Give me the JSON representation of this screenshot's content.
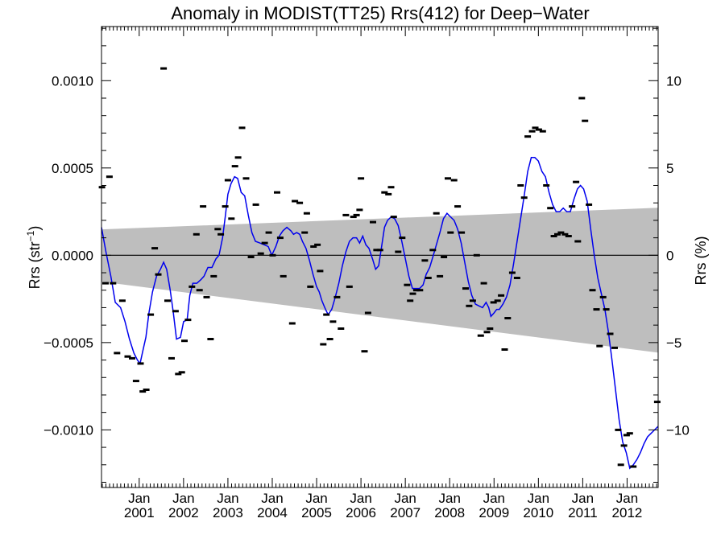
{
  "chart_data": {
    "type": "scatter",
    "title": "Anomaly in MODIST(TT25) Rrs(412) for Deep−Water",
    "ylabel_left_main": "Rrs (str",
    "ylabel_left_sup": "−1",
    "ylabel_left_close": ")",
    "ylabel_right": "Rrs (%)",
    "xlim": [
      2000.15,
      2012.7
    ],
    "ylim": [
      -0.00133,
      0.00131
    ],
    "y_ticks": [
      {
        "value": 0.001,
        "label": "0.0010"
      },
      {
        "value": 0.0005,
        "label": "0.0005"
      },
      {
        "value": 0.0,
        "label": "0.0000"
      },
      {
        "value": -0.0005,
        "label": "−0.0005"
      },
      {
        "value": -0.001,
        "label": "−0.0010"
      }
    ],
    "y_right_ticks": [
      {
        "value": 0.001,
        "label": "10"
      },
      {
        "value": 0.0005,
        "label": "5"
      },
      {
        "value": 0.0,
        "label": "0"
      },
      {
        "value": -0.0005,
        "label": "−5"
      },
      {
        "value": -0.001,
        "label": "−10"
      }
    ],
    "x_ticks": [
      {
        "value": 2001.0,
        "line1": "Jan",
        "line2": "2001"
      },
      {
        "value": 2002.0,
        "line1": "Jan",
        "line2": "2002"
      },
      {
        "value": 2003.0,
        "line1": "Jan",
        "line2": "2003"
      },
      {
        "value": 2004.0,
        "line1": "Jan",
        "line2": "2004"
      },
      {
        "value": 2005.0,
        "line1": "Jan",
        "line2": "2005"
      },
      {
        "value": 2006.0,
        "line1": "Jan",
        "line2": "2006"
      },
      {
        "value": 2007.0,
        "line1": "Jan",
        "line2": "2007"
      },
      {
        "value": 2008.0,
        "line1": "Jan",
        "line2": "2008"
      },
      {
        "value": 2009.0,
        "line1": "Jan",
        "line2": "2009"
      },
      {
        "value": 2010.0,
        "line1": "Jan",
        "line2": "2010"
      },
      {
        "value": 2011.0,
        "line1": "Jan",
        "line2": "2011"
      },
      {
        "value": 2012.0,
        "line1": "Jan",
        "line2": "2012"
      }
    ],
    "band": {
      "upper": [
        [
          2000.15,
          0.000148
        ],
        [
          2012.7,
          0.000272
        ]
      ],
      "lower": [
        [
          2000.15,
          -0.000152
        ],
        [
          2012.7,
          -0.000558
        ]
      ]
    },
    "zero_line": 0.0,
    "points": [
      [
        2000.16,
        0.00039
      ],
      [
        2000.24,
        -0.00016
      ],
      [
        2000.33,
        0.00045
      ],
      [
        2000.41,
        -0.00016
      ],
      [
        2000.5,
        -0.00056
      ],
      [
        2000.62,
        -0.00026
      ],
      [
        2000.74,
        -0.00058
      ],
      [
        2000.84,
        -0.00059
      ],
      [
        2000.93,
        -0.00072
      ],
      [
        2001.03,
        -0.00062
      ],
      [
        2001.08,
        -0.00078
      ],
      [
        2001.16,
        -0.00077
      ],
      [
        2001.26,
        -0.00034
      ],
      [
        2001.35,
        4e-05
      ],
      [
        2001.43,
        -0.00011
      ],
      [
        2001.55,
        0.00107
      ],
      [
        2001.64,
        -0.00026
      ],
      [
        2001.73,
        -0.00059
      ],
      [
        2001.82,
        -0.00032
      ],
      [
        2001.88,
        -0.00068
      ],
      [
        2001.96,
        -0.00067
      ],
      [
        2002.02,
        -0.00049
      ],
      [
        2002.1,
        -0.00037
      ],
      [
        2002.19,
        -0.00018
      ],
      [
        2002.29,
        0.00012
      ],
      [
        2002.36,
        -0.0002
      ],
      [
        2002.44,
        0.00028
      ],
      [
        2002.52,
        -0.00024
      ],
      [
        2002.61,
        -0.00048
      ],
      [
        2002.68,
        -0.00012
      ],
      [
        2002.77,
        0.00015
      ],
      [
        2002.84,
        0.00012
      ],
      [
        2002.94,
        0.00028
      ],
      [
        2003.0,
        0.00043
      ],
      [
        2003.08,
        0.00021
      ],
      [
        2003.16,
        0.00051
      ],
      [
        2003.23,
        0.00056
      ],
      [
        2003.32,
        0.00073
      ],
      [
        2003.41,
        0.00044
      ],
      [
        2003.52,
        -1e-05
      ],
      [
        2003.63,
        0.00029
      ],
      [
        2003.74,
        1e-05
      ],
      [
        2003.83,
        7e-05
      ],
      [
        2003.92,
        0.00013
      ],
      [
        2004.01,
        0.0
      ],
      [
        2004.11,
        0.00036
      ],
      [
        2004.18,
        0.0001
      ],
      [
        2004.25,
        -0.00012
      ],
      [
        2004.45,
        -0.00039
      ],
      [
        2004.51,
        0.00031
      ],
      [
        2004.62,
        0.0003
      ],
      [
        2004.73,
        0.00013
      ],
      [
        2004.78,
        0.00024
      ],
      [
        2004.86,
        -0.00018
      ],
      [
        2004.93,
        5e-05
      ],
      [
        2005.02,
        6e-05
      ],
      [
        2005.08,
        -9e-05
      ],
      [
        2005.15,
        -0.00051
      ],
      [
        2005.22,
        -0.00034
      ],
      [
        2005.3,
        -0.00048
      ],
      [
        2005.37,
        -0.00038
      ],
      [
        2005.46,
        -0.00024
      ],
      [
        2005.55,
        -0.00042
      ],
      [
        2005.66,
        0.00023
      ],
      [
        2005.74,
        -0.00018
      ],
      [
        2005.83,
        0.00022
      ],
      [
        2005.9,
        0.00023
      ],
      [
        2005.97,
        0.00026
      ],
      [
        2006.0,
        0.00044
      ],
      [
        2006.08,
        -0.00055
      ],
      [
        2006.16,
        -0.00033
      ],
      [
        2006.27,
        0.00019
      ],
      [
        2006.35,
        3e-05
      ],
      [
        2006.43,
        3e-05
      ],
      [
        2006.53,
        0.00036
      ],
      [
        2006.62,
        0.00035
      ],
      [
        2006.68,
        0.00039
      ],
      [
        2006.74,
        0.00022
      ],
      [
        2006.84,
        2e-05
      ],
      [
        2006.93,
        0.0001
      ],
      [
        2007.04,
        -0.00017
      ],
      [
        2007.11,
        -0.00026
      ],
      [
        2007.17,
        -0.00022
      ],
      [
        2007.25,
        -0.0002
      ],
      [
        2007.33,
        -0.0002
      ],
      [
        2007.44,
        -3e-05
      ],
      [
        2007.52,
        -0.00013
      ],
      [
        2007.62,
        3e-05
      ],
      [
        2007.7,
        0.00024
      ],
      [
        2007.78,
        -0.00012
      ],
      [
        2007.87,
        -1e-05
      ],
      [
        2007.96,
        0.00044
      ],
      [
        2008.02,
        0.00013
      ],
      [
        2008.1,
        0.00043
      ],
      [
        2008.18,
        0.00028
      ],
      [
        2008.27,
        0.00013
      ],
      [
        2008.36,
        -0.00019
      ],
      [
        2008.44,
        -0.00029
      ],
      [
        2008.52,
        -0.00026
      ],
      [
        2008.61,
        0.0
      ],
      [
        2008.7,
        -0.00046
      ],
      [
        2008.77,
        -0.00016
      ],
      [
        2008.84,
        -0.00044
      ],
      [
        2008.91,
        -0.00042
      ],
      [
        2008.99,
        -0.00027
      ],
      [
        2009.08,
        -0.00026
      ],
      [
        2009.16,
        -0.00023
      ],
      [
        2009.24,
        -0.00054
      ],
      [
        2009.31,
        -0.00036
      ],
      [
        2009.41,
        -0.0001
      ],
      [
        2009.52,
        -0.00013
      ],
      [
        2009.6,
        0.0004
      ],
      [
        2009.68,
        0.00033
      ],
      [
        2009.76,
        0.00068
      ],
      [
        2009.86,
        0.00071
      ],
      [
        2009.93,
        0.00073
      ],
      [
        2010.01,
        0.00072
      ],
      [
        2010.1,
        0.00071
      ],
      [
        2010.18,
        0.0004
      ],
      [
        2010.27,
        0.00027
      ],
      [
        2010.35,
        0.00011
      ],
      [
        2010.43,
        0.00012
      ],
      [
        2010.51,
        0.00013
      ],
      [
        2010.6,
        0.00012
      ],
      [
        2010.68,
        0.00011
      ],
      [
        2010.76,
        0.00028
      ],
      [
        2010.85,
        0.00042
      ],
      [
        2010.89,
        8e-05
      ],
      [
        2010.98,
        0.0009
      ],
      [
        2011.05,
        0.00077
      ],
      [
        2011.14,
        0.00029
      ],
      [
        2011.22,
        -0.0002
      ],
      [
        2011.31,
        -0.00031
      ],
      [
        2011.38,
        -0.00052
      ],
      [
        2011.46,
        -0.00024
      ],
      [
        2011.53,
        -0.00031
      ],
      [
        2011.62,
        -0.00045
      ],
      [
        2011.72,
        -0.00053
      ],
      [
        2011.8,
        -0.001
      ],
      [
        2011.86,
        -0.0012
      ],
      [
        2011.93,
        -0.00109
      ],
      [
        2011.99,
        -0.00103
      ],
      [
        2012.06,
        -0.00102
      ],
      [
        2012.14,
        -0.00121
      ],
      [
        2012.68,
        -0.00084
      ]
    ],
    "smooth_line": [
      [
        2000.15,
        0.00016
      ],
      [
        2000.25,
        2e-05
      ],
      [
        2000.36,
        -0.00012
      ],
      [
        2000.46,
        -0.00027
      ],
      [
        2000.58,
        -0.0003
      ],
      [
        2000.68,
        -0.00038
      ],
      [
        2000.78,
        -0.00048
      ],
      [
        2000.88,
        -0.00056
      ],
      [
        2000.96,
        -0.0006
      ],
      [
        2001.02,
        -0.00062
      ],
      [
        2001.08,
        -0.00055
      ],
      [
        2001.15,
        -0.00047
      ],
      [
        2001.22,
        -0.00033
      ],
      [
        2001.3,
        -0.00021
      ],
      [
        2001.39,
        -0.00012
      ],
      [
        2001.48,
        -8e-05
      ],
      [
        2001.55,
        -4e-05
      ],
      [
        2001.62,
        -8e-05
      ],
      [
        2001.7,
        -0.0002
      ],
      [
        2001.77,
        -0.00033
      ],
      [
        2001.84,
        -0.00048
      ],
      [
        2001.93,
        -0.00047
      ],
      [
        2002.0,
        -0.00038
      ],
      [
        2002.08,
        -0.00037
      ],
      [
        2002.14,
        -0.00023
      ],
      [
        2002.21,
        -0.00016
      ],
      [
        2002.3,
        -0.00016
      ],
      [
        2002.39,
        -0.00014
      ],
      [
        2002.46,
        -0.00012
      ],
      [
        2002.55,
        -7e-05
      ],
      [
        2002.64,
        -7e-05
      ],
      [
        2002.73,
        -2e-05
      ],
      [
        2002.8,
        0.0
      ],
      [
        2002.88,
        0.0001
      ],
      [
        2002.94,
        0.00022
      ],
      [
        2003.0,
        0.00035
      ],
      [
        2003.07,
        0.00041
      ],
      [
        2003.15,
        0.00045
      ],
      [
        2003.22,
        0.00044
      ],
      [
        2003.3,
        0.00036
      ],
      [
        2003.38,
        0.00034
      ],
      [
        2003.46,
        0.00023
      ],
      [
        2003.54,
        0.00013
      ],
      [
        2003.62,
        8e-05
      ],
      [
        2003.72,
        7e-05
      ],
      [
        2003.82,
        6e-05
      ],
      [
        2003.91,
        5e-05
      ],
      [
        2003.99,
        0.0
      ],
      [
        2004.08,
        5e-05
      ],
      [
        2004.16,
        0.00011
      ],
      [
        2004.24,
        0.00014
      ],
      [
        2004.33,
        0.00016
      ],
      [
        2004.42,
        0.00014
      ],
      [
        2004.48,
        0.00012
      ],
      [
        2004.55,
        0.00013
      ],
      [
        2004.62,
        0.00012
      ],
      [
        2004.68,
        8e-05
      ],
      [
        2004.76,
        4e-05
      ],
      [
        2004.84,
        -3e-05
      ],
      [
        2004.92,
        -0.00011
      ],
      [
        2005.0,
        -0.00018
      ],
      [
        2005.06,
        -0.00021
      ],
      [
        2005.12,
        -0.00026
      ],
      [
        2005.2,
        -0.00031
      ],
      [
        2005.26,
        -0.00034
      ],
      [
        2005.34,
        -0.00031
      ],
      [
        2005.42,
        -0.00024
      ],
      [
        2005.5,
        -0.00016
      ],
      [
        2005.58,
        -6e-05
      ],
      [
        2005.66,
        2e-05
      ],
      [
        2005.74,
        8e-05
      ],
      [
        2005.82,
        0.0001
      ],
      [
        2005.9,
        0.0001
      ],
      [
        2005.97,
        7e-05
      ],
      [
        2006.04,
        0.00011
      ],
      [
        2006.11,
        6e-05
      ],
      [
        2006.18,
        4e-05
      ],
      [
        2006.26,
        -2e-05
      ],
      [
        2006.33,
        -8e-05
      ],
      [
        2006.4,
        -6e-05
      ],
      [
        2006.46,
        4e-05
      ],
      [
        2006.53,
        0.00016
      ],
      [
        2006.6,
        0.0002
      ],
      [
        2006.68,
        0.00022
      ],
      [
        2006.76,
        0.00021
      ],
      [
        2006.84,
        0.00017
      ],
      [
        2006.92,
        8e-05
      ],
      [
        2007.0,
        -2e-05
      ],
      [
        2007.08,
        -0.00012
      ],
      [
        2007.16,
        -0.00019
      ],
      [
        2007.24,
        -0.00019
      ],
      [
        2007.32,
        -0.00019
      ],
      [
        2007.4,
        -0.00017
      ],
      [
        2007.47,
        -0.00011
      ],
      [
        2007.55,
        -7e-05
      ],
      [
        2007.62,
        -1e-05
      ],
      [
        2007.7,
        6e-05
      ],
      [
        2007.78,
        0.00013
      ],
      [
        2007.86,
        0.00021
      ],
      [
        2007.94,
        0.00024
      ],
      [
        2008.02,
        0.00022
      ],
      [
        2008.1,
        0.0002
      ],
      [
        2008.18,
        0.00015
      ],
      [
        2008.26,
        7e-05
      ],
      [
        2008.34,
        -4e-05
      ],
      [
        2008.42,
        -0.00015
      ],
      [
        2008.5,
        -0.00023
      ],
      [
        2008.58,
        -0.00028
      ],
      [
        2008.66,
        -0.00029
      ],
      [
        2008.74,
        -0.0003
      ],
      [
        2008.82,
        -0.00027
      ],
      [
        2008.88,
        -0.0003
      ],
      [
        2008.93,
        -0.00035
      ],
      [
        2009.0,
        -0.00033
      ],
      [
        2009.06,
        -0.00031
      ],
      [
        2009.12,
        -0.00031
      ],
      [
        2009.2,
        -0.00028
      ],
      [
        2009.28,
        -0.00024
      ],
      [
        2009.36,
        -0.00017
      ],
      [
        2009.44,
        -5e-05
      ],
      [
        2009.52,
        8e-05
      ],
      [
        2009.6,
        0.00021
      ],
      [
        2009.68,
        0.00034
      ],
      [
        2009.76,
        0.00048
      ],
      [
        2009.84,
        0.00056
      ],
      [
        2009.92,
        0.00056
      ],
      [
        2010.0,
        0.00054
      ],
      [
        2010.08,
        0.00048
      ],
      [
        2010.16,
        0.00045
      ],
      [
        2010.24,
        0.00036
      ],
      [
        2010.32,
        0.00029
      ],
      [
        2010.4,
        0.00025
      ],
      [
        2010.48,
        0.00025
      ],
      [
        2010.56,
        0.00027
      ],
      [
        2010.64,
        0.00025
      ],
      [
        2010.72,
        0.00025
      ],
      [
        2010.8,
        0.00032
      ],
      [
        2010.88,
        0.00038
      ],
      [
        2010.95,
        0.0004
      ],
      [
        2011.02,
        0.00038
      ],
      [
        2011.1,
        0.00031
      ],
      [
        2011.18,
        0.00015
      ],
      [
        2011.26,
        0.0
      ],
      [
        2011.34,
        -0.00013
      ],
      [
        2011.42,
        -0.00022
      ],
      [
        2011.5,
        -0.00031
      ],
      [
        2011.58,
        -0.00044
      ],
      [
        2011.66,
        -0.0006
      ],
      [
        2011.74,
        -0.00077
      ],
      [
        2011.82,
        -0.00094
      ],
      [
        2011.9,
        -0.00107
      ],
      [
        2011.98,
        -0.00113
      ],
      [
        2012.06,
        -0.00122
      ],
      [
        2012.14,
        -0.0012
      ],
      [
        2012.22,
        -0.00117
      ],
      [
        2012.3,
        -0.00113
      ],
      [
        2012.38,
        -0.00108
      ],
      [
        2012.46,
        -0.00104
      ],
      [
        2012.54,
        -0.00102
      ],
      [
        2012.62,
        -0.001
      ],
      [
        2012.7,
        -0.00098
      ]
    ],
    "colors": {
      "smooth_line": "#0000ee",
      "band": "#bebebe",
      "points": "#000000",
      "axes": "#000000"
    }
  }
}
